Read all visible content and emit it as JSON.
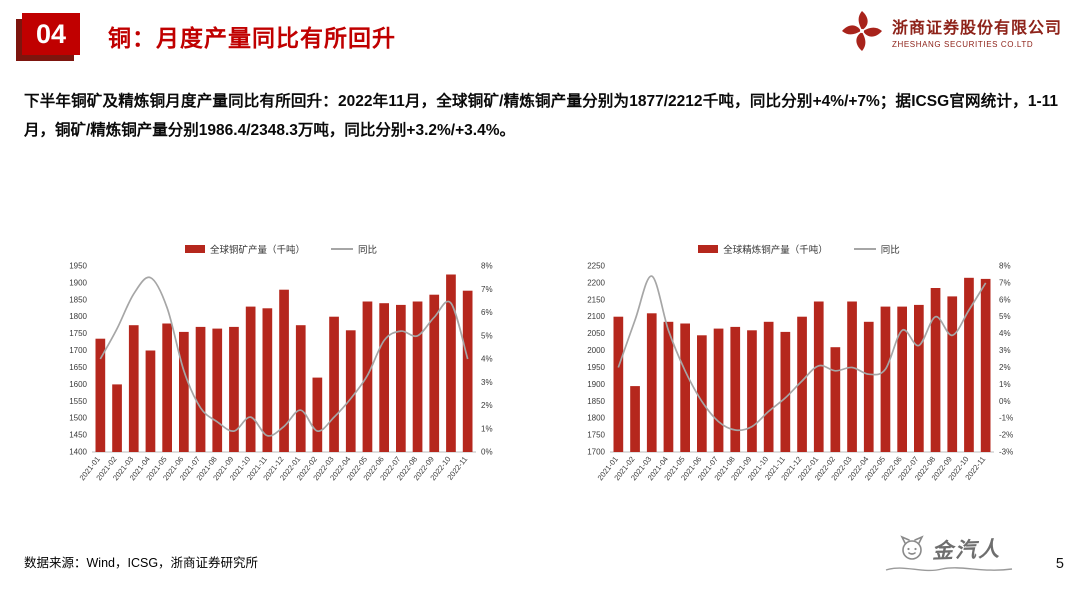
{
  "header": {
    "section_number": "04",
    "title": "铜：月度产量同比有所回升"
  },
  "brand": {
    "company_cn": "浙商证券股份有限公司",
    "company_en": "ZHESHANG SECURITIES CO.LTD"
  },
  "body": {
    "paragraph": "下半年铜矿及精炼铜月度产量同比有所回升：2022年11月，全球铜矿/精炼铜产量分别为1877/2212千吨，同比分别+4%/+7%；据ICSG官网统计，1-11月，铜矿/精炼铜产量分别1986.4/2348.3万吨，同比分别+3.2%/+3.4%。"
  },
  "footer": {
    "source": "数据来源：Wind，ICSG，浙商证券研究所",
    "watermark": "金汽人",
    "page_number": "5"
  },
  "colors": {
    "accent": "#c00000",
    "bar": "#b5271d",
    "line": "#a6a6a6"
  },
  "chart_data": [
    {
      "type": "bar+line",
      "legend": [
        "全球铜矿产量（千吨）",
        "同比"
      ],
      "legend_position": "top",
      "grid": false,
      "categories": [
        "2021-01",
        "2021-02",
        "2021-03",
        "2021-04",
        "2021-05",
        "2021-06",
        "2021-07",
        "2021-08",
        "2021-09",
        "2021-10",
        "2021-11",
        "2021-12",
        "2022-01",
        "2022-02",
        "2022-03",
        "2022-04",
        "2022-05",
        "2022-06",
        "2022-07",
        "2022-08",
        "2022-09",
        "2022-10",
        "2022-11"
      ],
      "series": [
        {
          "name": "全球铜矿产量（千吨）",
          "type": "bar",
          "axis": "left",
          "values": [
            1735,
            1600,
            1775,
            1700,
            1780,
            1755,
            1770,
            1765,
            1770,
            1830,
            1825,
            1880,
            1775,
            1620,
            1800,
            1760,
            1845,
            1840,
            1835,
            1845,
            1865,
            1925,
            1877
          ]
        },
        {
          "name": "同比",
          "type": "line",
          "axis": "right",
          "values": [
            4.0,
            5.3,
            6.8,
            7.5,
            6.2,
            3.5,
            1.9,
            1.3,
            0.9,
            1.5,
            0.7,
            1.1,
            1.8,
            0.9,
            1.5,
            2.3,
            3.3,
            4.8,
            5.2,
            5.0,
            5.8,
            6.4,
            4.0
          ]
        }
      ],
      "left_axis": {
        "min": 1400,
        "max": 1950,
        "step": 50
      },
      "right_axis": {
        "min": 0,
        "max": 8,
        "step": 1,
        "format": "percent"
      },
      "bar_color": "#b5271d",
      "line_color": "#a6a6a6"
    },
    {
      "type": "bar+line",
      "legend": [
        "全球精炼铜产量（千吨）",
        "同比"
      ],
      "legend_position": "top",
      "grid": false,
      "categories": [
        "2021-01",
        "2021-02",
        "2021-03",
        "2021-04",
        "2021-05",
        "2021-06",
        "2021-07",
        "2021-08",
        "2021-09",
        "2021-10",
        "2021-11",
        "2021-12",
        "2022-01",
        "2022-02",
        "2022-03",
        "2022-04",
        "2022-05",
        "2022-06",
        "2022-07",
        "2022-08",
        "2022-09",
        "2022-10",
        "2022-11"
      ],
      "series": [
        {
          "name": "全球精炼铜产量（千吨）",
          "type": "bar",
          "axis": "left",
          "values": [
            2100,
            1895,
            2110,
            2085,
            2080,
            2045,
            2065,
            2070,
            2060,
            2085,
            2055,
            2100,
            2145,
            2010,
            2145,
            2085,
            2130,
            2130,
            2135,
            2185,
            2160,
            2215,
            2212
          ]
        },
        {
          "name": "同比",
          "type": "line",
          "axis": "right",
          "values": [
            2.0,
            4.8,
            7.4,
            4.2,
            1.8,
            0.0,
            -1.2,
            -1.7,
            -1.5,
            -0.6,
            0.2,
            1.2,
            2.1,
            1.8,
            2.0,
            1.6,
            1.9,
            4.2,
            3.3,
            5.0,
            3.9,
            5.4,
            7.0
          ]
        }
      ],
      "left_axis": {
        "min": 1700,
        "max": 2250,
        "step": 50
      },
      "right_axis": {
        "min": -3,
        "max": 8,
        "step": 1,
        "format": "percent"
      },
      "bar_color": "#b5271d",
      "line_color": "#a6a6a6"
    }
  ]
}
